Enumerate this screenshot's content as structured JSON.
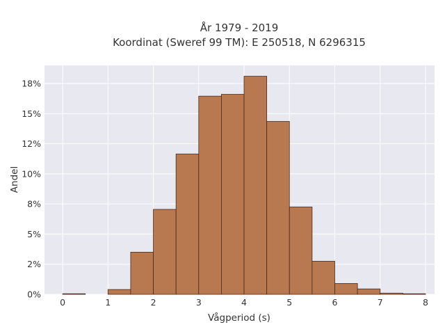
{
  "chart_data": {
    "type": "bar",
    "title_line1": "År 1979 - 2019",
    "title_line2": "Koordinat (Sweref 99 TM): E 250518, N 6296315",
    "xlabel": "Vågperiod (s)",
    "ylabel": "Andel",
    "bin_width": 0.5,
    "bins": [
      {
        "start": 0.0,
        "value": 0.0005
      },
      {
        "start": 0.5,
        "value": 0.0
      },
      {
        "start": 1.0,
        "value": 0.004
      },
      {
        "start": 1.5,
        "value": 0.035
      },
      {
        "start": 2.0,
        "value": 0.0705
      },
      {
        "start": 2.5,
        "value": 0.1165
      },
      {
        "start": 3.0,
        "value": 0.1645
      },
      {
        "start": 3.5,
        "value": 0.166
      },
      {
        "start": 4.0,
        "value": 0.181
      },
      {
        "start": 4.5,
        "value": 0.1435
      },
      {
        "start": 5.0,
        "value": 0.0725
      },
      {
        "start": 5.5,
        "value": 0.0275
      },
      {
        "start": 6.0,
        "value": 0.009
      },
      {
        "start": 6.5,
        "value": 0.0045
      },
      {
        "start": 7.0,
        "value": 0.001
      },
      {
        "start": 7.5,
        "value": 0.0005
      }
    ],
    "xlim": [
      -0.4,
      8.2
    ],
    "ylim": [
      0,
      0.19
    ],
    "xticks": [
      0,
      1,
      2,
      3,
      4,
      5,
      6,
      7,
      8
    ],
    "xtick_labels": [
      "0",
      "1",
      "2",
      "3",
      "4",
      "5",
      "6",
      "7",
      "8"
    ],
    "yticks": [
      0,
      0.025,
      0.05,
      0.075,
      0.1,
      0.125,
      0.15,
      0.175
    ],
    "ytick_labels": [
      "0%",
      "2%",
      "5%",
      "8%",
      "10%",
      "12%",
      "15%",
      "18%"
    ],
    "grid": true,
    "colors": {
      "bar_fill": "#b87850",
      "bar_edge": "#4a2a1a",
      "plot_background": "#e8e8f0",
      "grid": "#ffffff"
    }
  }
}
